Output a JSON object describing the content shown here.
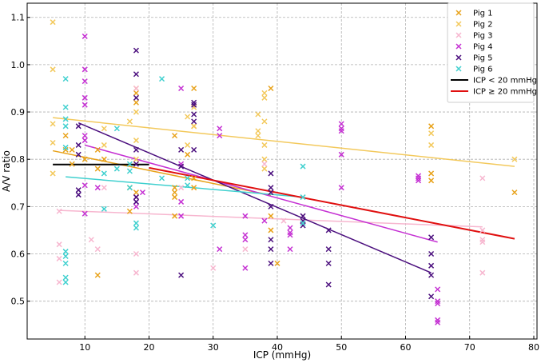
{
  "chart_data": {
    "type": "scatter",
    "title": "",
    "xlabel": "ICP (mmHg)",
    "ylabel": "A/V ratio",
    "xlim": [
      1,
      80.5
    ],
    "ylim": [
      0.42,
      1.13
    ],
    "xticks": [
      10,
      20,
      30,
      40,
      50,
      60,
      70,
      80
    ],
    "yticks": [
      0.5,
      0.6,
      0.7,
      0.8,
      0.9,
      1.0,
      1.1
    ],
    "grid": true,
    "legend_position": "top-right",
    "series": [
      {
        "name": "Pig 1",
        "color": "#e8a21a",
        "points": [
          [
            7,
            0.85
          ],
          [
            7,
            0.82
          ],
          [
            8,
            0.82
          ],
          [
            8,
            0.79
          ],
          [
            10,
            0.8
          ],
          [
            12,
            0.82
          ],
          [
            12,
            0.78
          ],
          [
            12,
            0.555
          ],
          [
            13,
            0.8
          ],
          [
            17,
            0.69
          ],
          [
            17,
            0.74
          ],
          [
            18,
            0.92
          ],
          [
            18,
            0.94
          ],
          [
            18,
            0.73
          ],
          [
            18,
            0.72
          ],
          [
            24,
            0.85
          ],
          [
            24,
            0.74
          ],
          [
            24,
            0.73
          ],
          [
            24,
            0.72
          ],
          [
            24,
            0.68
          ],
          [
            26,
            0.81
          ],
          [
            27,
            0.95
          ],
          [
            27,
            0.87
          ],
          [
            27,
            0.76
          ],
          [
            27,
            0.74
          ],
          [
            39,
            0.95
          ],
          [
            39,
            0.73
          ],
          [
            39,
            0.68
          ],
          [
            39,
            0.65
          ],
          [
            40,
            0.58
          ],
          [
            64,
            0.87
          ],
          [
            64,
            0.77
          ],
          [
            64,
            0.755
          ],
          [
            77,
            0.73
          ]
        ]
      },
      {
        "name": "Pig 2",
        "color": "#f3c95c",
        "points": [
          [
            5,
            1.09
          ],
          [
            5,
            0.99
          ],
          [
            5,
            0.875
          ],
          [
            5,
            0.835
          ],
          [
            5,
            0.77
          ],
          [
            13,
            0.865
          ],
          [
            13,
            0.83
          ],
          [
            17,
            0.88
          ],
          [
            18,
            0.95
          ],
          [
            18,
            0.9
          ],
          [
            18,
            0.84
          ],
          [
            18,
            0.8
          ],
          [
            26,
            0.89
          ],
          [
            26,
            0.83
          ],
          [
            27,
            0.91
          ],
          [
            27,
            0.87
          ],
          [
            37,
            0.895
          ],
          [
            37,
            0.86
          ],
          [
            37,
            0.85
          ],
          [
            38,
            0.94
          ],
          [
            38,
            0.93
          ],
          [
            38,
            0.88
          ],
          [
            38,
            0.83
          ],
          [
            38,
            0.8
          ],
          [
            38,
            0.78
          ],
          [
            64,
            0.855
          ],
          [
            64,
            0.83
          ],
          [
            77,
            0.8
          ]
        ]
      },
      {
        "name": "Pig 3",
        "color": "#f7b6cf",
        "points": [
          [
            6,
            0.62
          ],
          [
            6,
            0.69
          ],
          [
            6,
            0.59
          ],
          [
            6,
            0.54
          ],
          [
            11,
            0.63
          ],
          [
            12,
            0.61
          ],
          [
            13,
            0.74
          ],
          [
            18,
            0.95
          ],
          [
            18,
            0.6
          ],
          [
            18,
            0.56
          ],
          [
            25,
            0.74
          ],
          [
            30,
            0.57
          ],
          [
            35,
            0.61
          ],
          [
            38,
            0.79
          ],
          [
            41,
            0.67
          ],
          [
            44,
            0.68
          ],
          [
            72,
            0.76
          ],
          [
            72,
            0.65
          ],
          [
            72,
            0.63
          ],
          [
            72,
            0.625
          ],
          [
            72,
            0.56
          ]
        ]
      },
      {
        "name": "Pig 4",
        "color": "#c531d3",
        "points": [
          [
            10,
            1.06
          ],
          [
            10,
            0.99
          ],
          [
            10,
            0.965
          ],
          [
            10,
            0.93
          ],
          [
            10,
            0.915
          ],
          [
            10,
            0.85
          ],
          [
            10,
            0.84
          ],
          [
            10,
            0.745
          ],
          [
            10,
            0.685
          ],
          [
            12,
            0.74
          ],
          [
            18,
            0.72
          ],
          [
            18,
            0.71
          ],
          [
            18,
            0.7
          ],
          [
            19,
            0.73
          ],
          [
            25,
            0.95
          ],
          [
            25,
            0.79
          ],
          [
            25,
            0.71
          ],
          [
            25,
            0.68
          ],
          [
            31,
            0.865
          ],
          [
            31,
            0.85
          ],
          [
            31,
            0.61
          ],
          [
            35,
            0.68
          ],
          [
            35,
            0.64
          ],
          [
            35,
            0.63
          ],
          [
            35,
            0.57
          ],
          [
            38,
            0.67
          ],
          [
            42,
            0.655
          ],
          [
            42,
            0.645
          ],
          [
            42,
            0.64
          ],
          [
            42,
            0.61
          ],
          [
            50,
            0.875
          ],
          [
            50,
            0.865
          ],
          [
            50,
            0.86
          ],
          [
            50,
            0.81
          ],
          [
            50,
            0.74
          ],
          [
            62,
            0.765
          ],
          [
            62,
            0.76
          ],
          [
            62,
            0.755
          ],
          [
            65,
            0.525
          ],
          [
            65,
            0.5
          ],
          [
            65,
            0.495
          ],
          [
            65,
            0.46
          ],
          [
            65,
            0.455
          ]
        ]
      },
      {
        "name": "Pig 5",
        "color": "#4b0f7e",
        "points": [
          [
            9,
            0.87
          ],
          [
            9,
            0.83
          ],
          [
            9,
            0.81
          ],
          [
            9,
            0.735
          ],
          [
            9,
            0.725
          ],
          [
            18,
            1.03
          ],
          [
            18,
            0.98
          ],
          [
            18,
            0.93
          ],
          [
            18,
            0.82
          ],
          [
            18,
            0.79
          ],
          [
            18,
            0.72
          ],
          [
            18,
            0.71
          ],
          [
            25,
            0.82
          ],
          [
            25,
            0.785
          ],
          [
            25,
            0.555
          ],
          [
            27,
            0.92
          ],
          [
            27,
            0.915
          ],
          [
            27,
            0.895
          ],
          [
            27,
            0.88
          ],
          [
            27,
            0.82
          ],
          [
            39,
            0.77
          ],
          [
            39,
            0.74
          ],
          [
            39,
            0.73
          ],
          [
            39,
            0.7
          ],
          [
            39,
            0.63
          ],
          [
            39,
            0.61
          ],
          [
            39,
            0.58
          ],
          [
            44,
            0.68
          ],
          [
            44,
            0.67
          ],
          [
            44,
            0.66
          ],
          [
            48,
            0.65
          ],
          [
            48,
            0.61
          ],
          [
            48,
            0.58
          ],
          [
            48,
            0.535
          ],
          [
            64,
            0.635
          ],
          [
            64,
            0.6
          ],
          [
            64,
            0.575
          ],
          [
            64,
            0.555
          ],
          [
            64,
            0.51
          ]
        ]
      },
      {
        "name": "Pig 6",
        "color": "#40d0cf",
        "points": [
          [
            7,
            0.97
          ],
          [
            7,
            0.91
          ],
          [
            7,
            0.885
          ],
          [
            7,
            0.87
          ],
          [
            7,
            0.825
          ],
          [
            7,
            0.605
          ],
          [
            7,
            0.595
          ],
          [
            7,
            0.58
          ],
          [
            7,
            0.55
          ],
          [
            7,
            0.54
          ],
          [
            13,
            0.77
          ],
          [
            13,
            0.695
          ],
          [
            15,
            0.865
          ],
          [
            15,
            0.78
          ],
          [
            17,
            0.79
          ],
          [
            17,
            0.775
          ],
          [
            17,
            0.74
          ],
          [
            18,
            0.665
          ],
          [
            18,
            0.655
          ],
          [
            22,
            0.97
          ],
          [
            22,
            0.76
          ],
          [
            26,
            0.76
          ],
          [
            26,
            0.745
          ],
          [
            30,
            0.66
          ],
          [
            44,
            0.785
          ],
          [
            44,
            0.72
          ],
          [
            44,
            0.665
          ]
        ]
      }
    ],
    "trend_lines": [
      {
        "series": "Pig 1",
        "x": [
          5,
          39
        ],
        "y": [
          0.818,
          0.724
        ]
      },
      {
        "series": "Pig 2",
        "x": [
          5,
          77
        ],
        "y": [
          0.888,
          0.785
        ]
      },
      {
        "series": "Pig 3",
        "x": [
          6,
          72
        ],
        "y": [
          0.692,
          0.657
        ]
      },
      {
        "series": "Pig 4",
        "x": [
          10,
          65
        ],
        "y": [
          0.83,
          0.625
        ]
      },
      {
        "series": "Pig 5",
        "x": [
          9,
          64
        ],
        "y": [
          0.877,
          0.56
        ]
      },
      {
        "series": "Pig 6",
        "x": [
          7,
          44
        ],
        "y": [
          0.763,
          0.72
        ]
      },
      {
        "series": "ICP < 20 mmHg",
        "x": [
          5,
          20
        ],
        "y": [
          0.789,
          0.789
        ]
      },
      {
        "series": "ICP ≥ 20 mmHg",
        "x": [
          20,
          77
        ],
        "y": [
          0.782,
          0.632
        ]
      }
    ],
    "legend": [
      {
        "label": "Pig 1",
        "kind": "marker",
        "color": "#e8a21a"
      },
      {
        "label": "Pig 2",
        "kind": "marker",
        "color": "#f3c95c"
      },
      {
        "label": "Pig 3",
        "kind": "marker",
        "color": "#f7b6cf"
      },
      {
        "label": "Pig 4",
        "kind": "marker",
        "color": "#c531d3"
      },
      {
        "label": "Pig 5",
        "kind": "marker",
        "color": "#4b0f7e"
      },
      {
        "label": "Pig 6",
        "kind": "marker",
        "color": "#40d0cf"
      },
      {
        "label": "ICP < 20 mmHg",
        "kind": "line",
        "color": "#000000"
      },
      {
        "label": "ICP ≥ 20 mmHg",
        "kind": "line",
        "color": "#e01010"
      }
    ]
  }
}
